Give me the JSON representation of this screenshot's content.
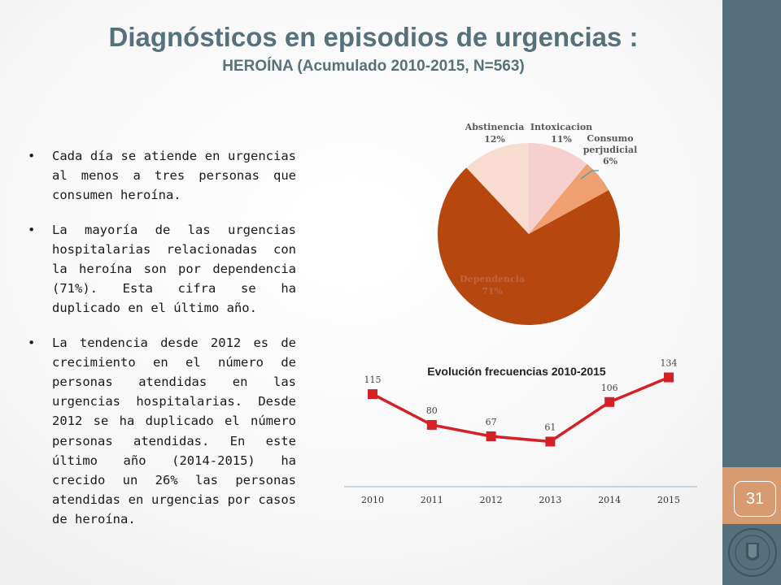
{
  "title": "Diagnósticos en episodios de urgencias :",
  "subtitle": "HEROÍNA  (Acumulado 2010-2015, N=563)",
  "page_number": "31",
  "bullets": [
    "Cada día se atiende en urgencias al menos a tres personas que consumen heroína.",
    "La mayoría de las urgencias hospitalarias relacionadas con la heroína son por dependencia (71%). Esta cifra se ha duplicado en el último año.",
    "La tendencia desde 2012 es de crecimiento en el número de personas atendidas en las urgencias hospitalarias. Desde 2012 se ha duplicado el número personas atendidas.  En este último año (2014-2015) ha crecido un 26% las personas atendidas en urgencias por casos de heroína."
  ],
  "chart_data": [
    {
      "type": "pie",
      "title": "",
      "slices": [
        {
          "label": "Intoxicacion",
          "value": 11,
          "value_label": "11%",
          "color": "#f6d0cf"
        },
        {
          "label": "Consumo perjudicial",
          "value": 6,
          "value_label": "6%",
          "color": "#f0a070"
        },
        {
          "label": "Dependencia",
          "value": 71,
          "value_label": "71%",
          "color": "#b5470f"
        },
        {
          "label": "Abstinencia",
          "value": 12,
          "value_label": "12%",
          "color": "#f8dcd0"
        }
      ]
    },
    {
      "type": "line",
      "title": "Evolución frecuencias 2010-2015",
      "x": [
        "2010",
        "2011",
        "2012",
        "2013",
        "2014",
        "2015"
      ],
      "series": [
        {
          "values": [
            115,
            80,
            67,
            61,
            106,
            134
          ],
          "color": "#d42027"
        }
      ],
      "ylim": [
        0,
        140
      ],
      "grid": false,
      "legend": "none"
    }
  ]
}
